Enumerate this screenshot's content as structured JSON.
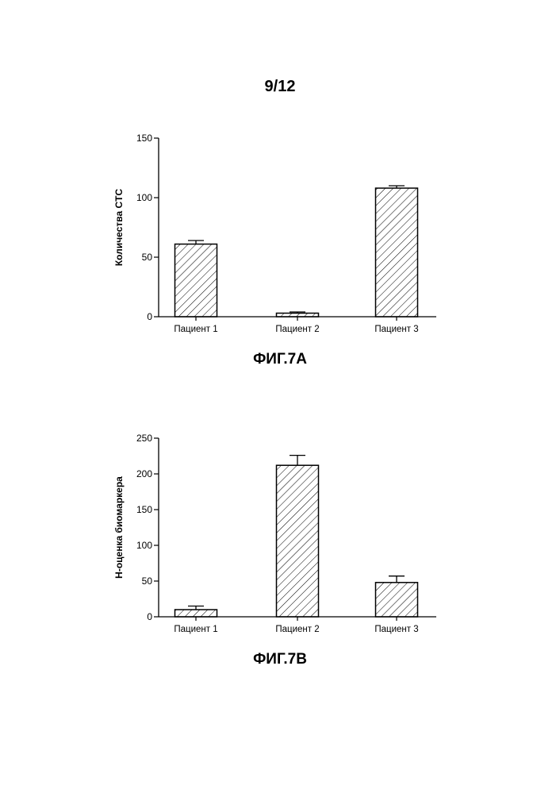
{
  "page": {
    "number": "9/12"
  },
  "figures": [
    {
      "caption": "ФИГ.7A"
    },
    {
      "caption": "ФИГ.7B"
    }
  ],
  "chart_data": [
    {
      "type": "bar",
      "categories": [
        "Пациент 1",
        "Пациент 2",
        "Пациент 3"
      ],
      "values": [
        61,
        3,
        108
      ],
      "errors": [
        3,
        1,
        2
      ],
      "ylabel": "Количества CTC",
      "xlabel": "",
      "ylim": [
        0,
        150
      ],
      "yticks": [
        0,
        50,
        100,
        150
      ],
      "fill": "hatched",
      "grid": false
    },
    {
      "type": "bar",
      "categories": [
        "Пациент 1",
        "Пациент 2",
        "Пациент 3"
      ],
      "values": [
        10,
        212,
        48
      ],
      "errors": [
        5,
        14,
        9
      ],
      "ylabel": "Н-оценка биомаркера",
      "xlabel": "",
      "ylim": [
        0,
        250
      ],
      "yticks": [
        0,
        50,
        100,
        150,
        200,
        250
      ],
      "fill": "hatched",
      "grid": false
    }
  ]
}
